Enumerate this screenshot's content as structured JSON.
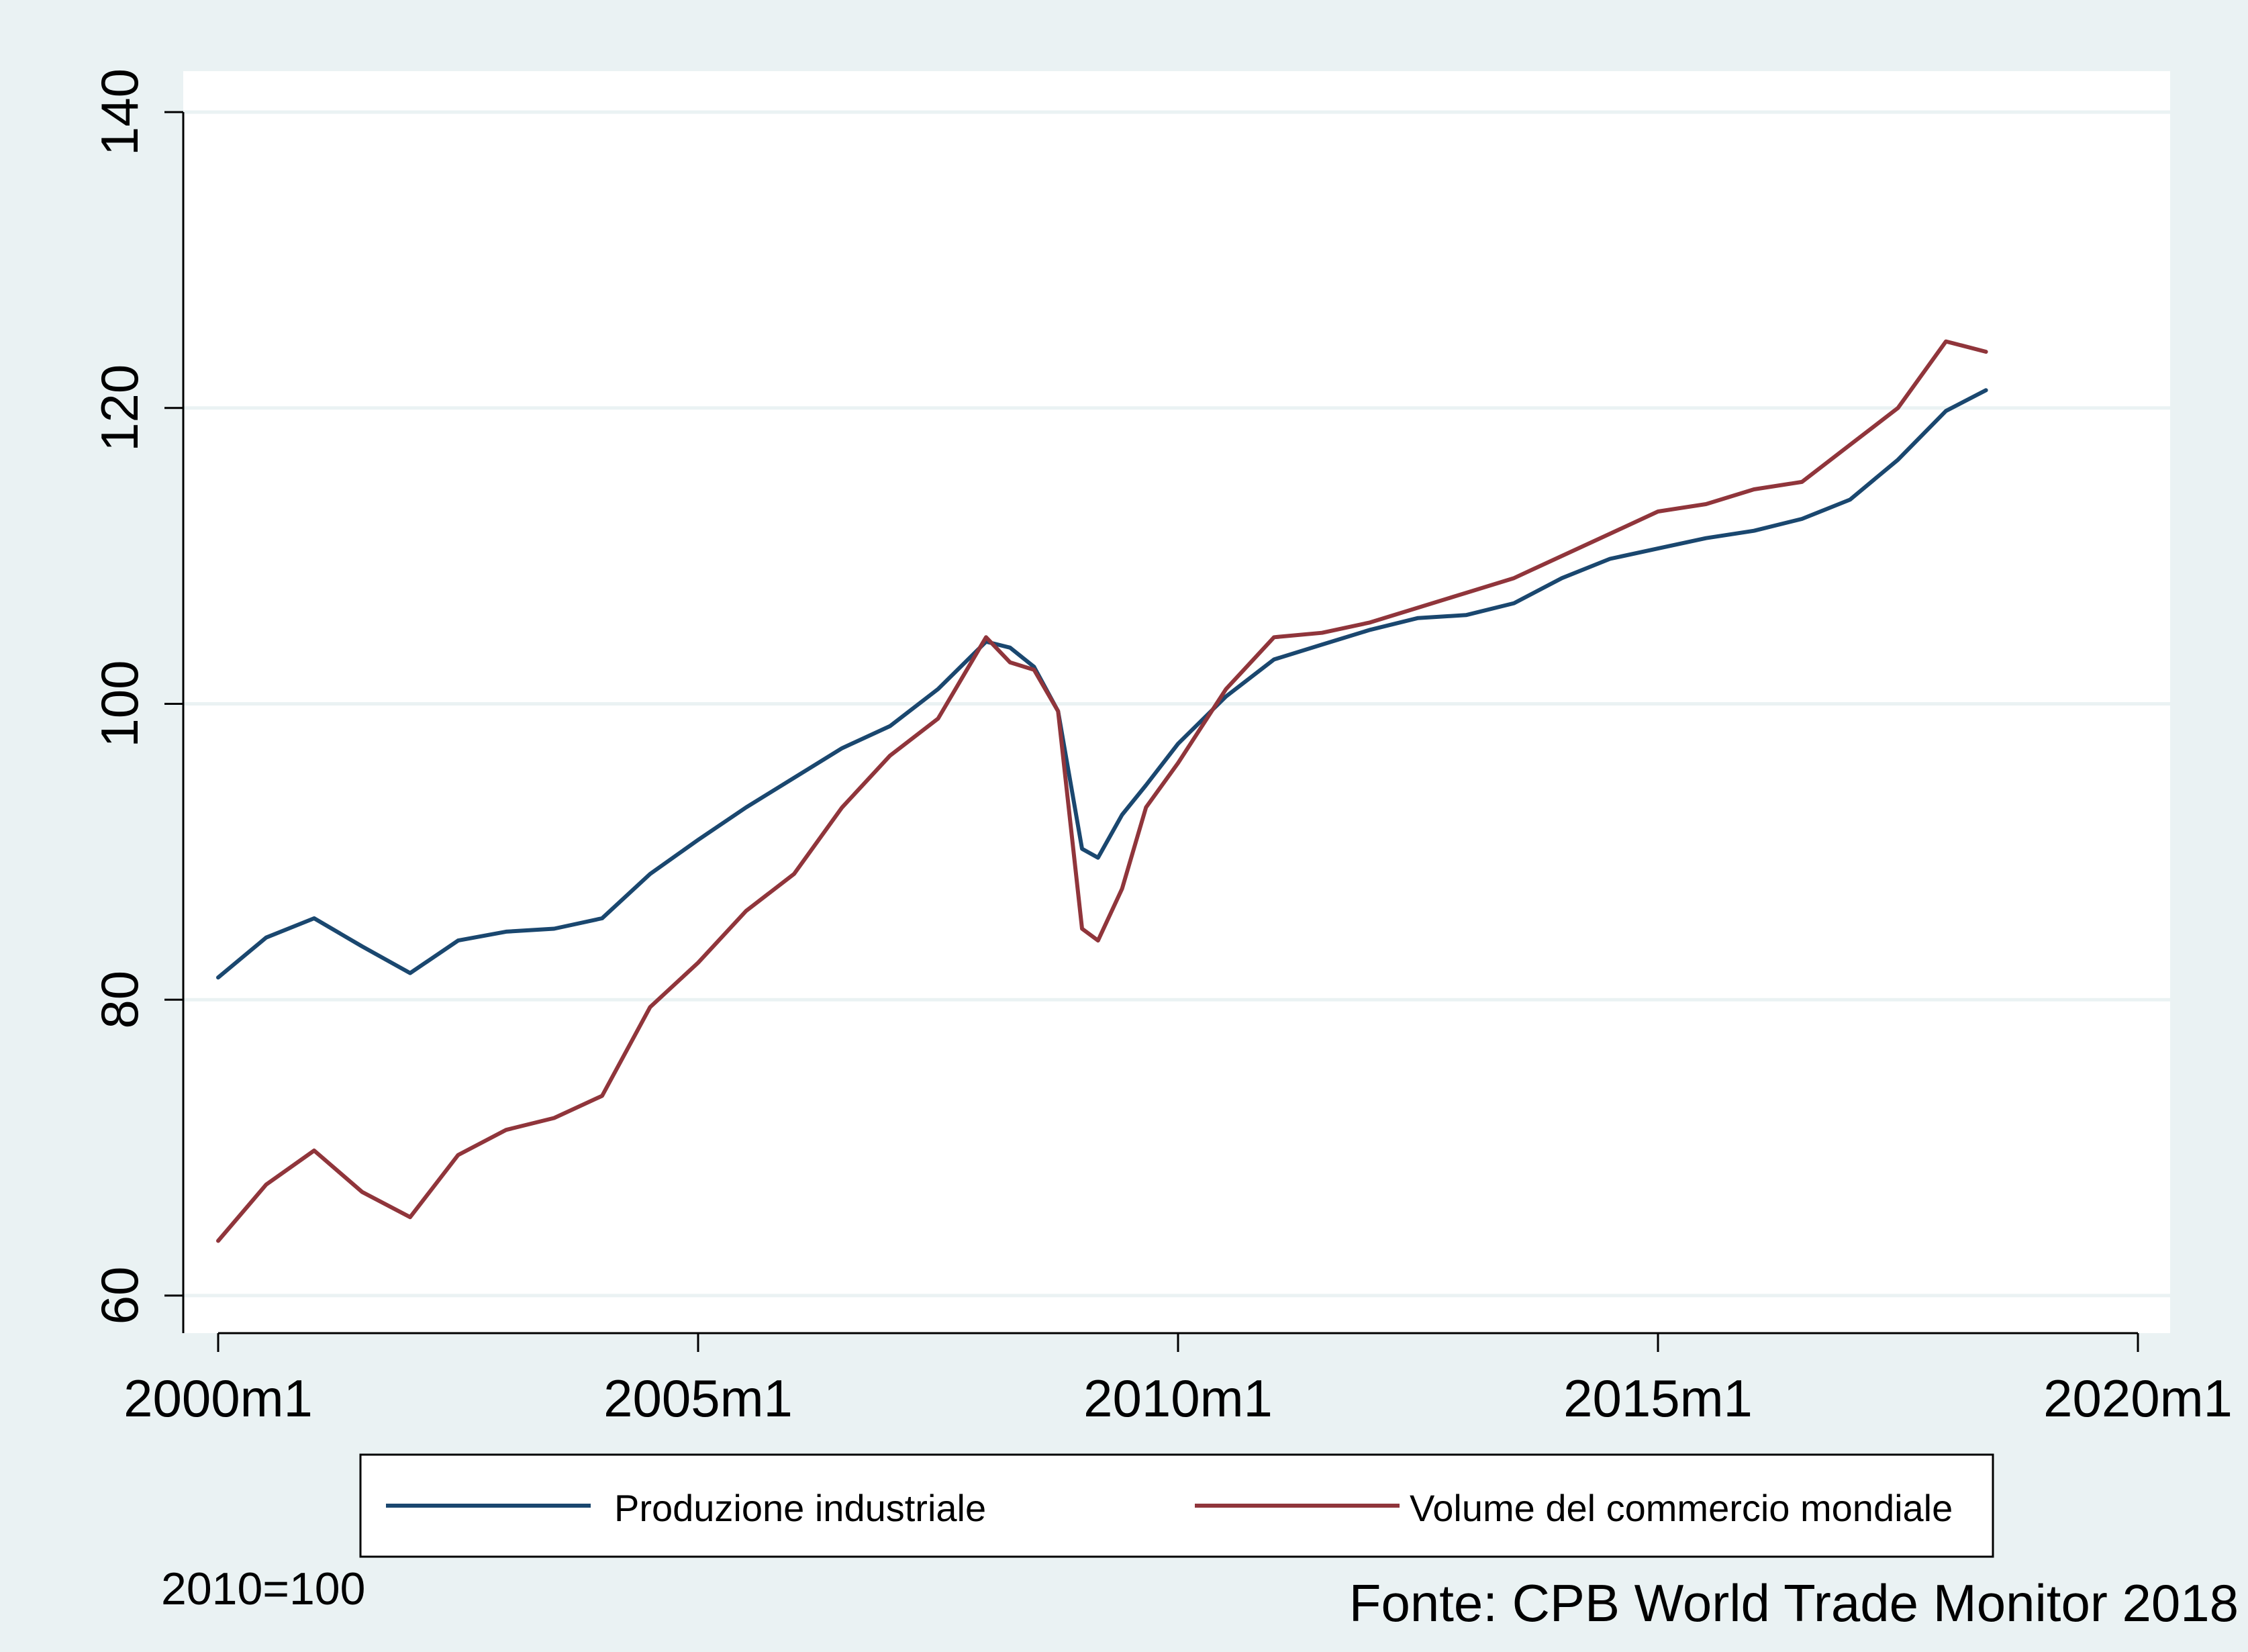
{
  "colors": {
    "outer_bg": "#eaf2f3",
    "plot_bg": "#ffffff",
    "grid": "#eaf2f3",
    "axis": "#000000",
    "series_1": "#1a476f",
    "series_2": "#90353b"
  },
  "footnotes": {
    "base_note": "2010=100",
    "source": "Fonte: CPB World Trade Monitor 2018"
  },
  "chart_data": {
    "type": "line",
    "title": "",
    "xlabel": "",
    "ylabel": "",
    "xlim": [
      "2000m1",
      "2020m1"
    ],
    "ylim": [
      60,
      140
    ],
    "x_ticks": [
      "2000m1",
      "2005m1",
      "2010m1",
      "2015m1",
      "2020m1"
    ],
    "y_ticks": [
      60,
      80,
      100,
      120,
      140
    ],
    "grid": true,
    "legend_position": "bottom",
    "x_anchor_months": [
      "2000m1",
      "2000m7",
      "2001m1",
      "2001m7",
      "2002m1",
      "2002m7",
      "2003m1",
      "2003m7",
      "2004m1",
      "2004m7",
      "2005m1",
      "2005m7",
      "2006m1",
      "2006m7",
      "2007m1",
      "2007m7",
      "2008m1",
      "2008m4",
      "2008m7",
      "2008m10",
      "2009m1",
      "2009m3",
      "2009m6",
      "2009m9",
      "2010m1",
      "2010m7",
      "2011m1",
      "2011m7",
      "2012m1",
      "2012m7",
      "2013m1",
      "2013m7",
      "2014m1",
      "2014m7",
      "2015m1",
      "2015m7",
      "2016m1",
      "2016m7",
      "2017m1",
      "2017m7",
      "2018m1",
      "2018m6"
    ],
    "series": [
      {
        "name": "Produzione industriale",
        "color": "#1a476f",
        "values": [
          81.5,
          84.2,
          85.5,
          83.6,
          81.8,
          84.0,
          84.6,
          84.8,
          85.5,
          88.5,
          90.8,
          93.0,
          95.0,
          97.0,
          98.5,
          101.0,
          104.2,
          103.8,
          102.5,
          99.5,
          90.2,
          89.6,
          92.5,
          94.5,
          97.3,
          100.5,
          103.0,
          104.0,
          105.0,
          105.8,
          106.0,
          106.8,
          108.5,
          109.8,
          110.5,
          111.2,
          111.7,
          112.5,
          113.8,
          116.5,
          119.8,
          121.2
        ]
      },
      {
        "name": "Volume del commercio mondiale",
        "color": "#90353b",
        "values": [
          63.7,
          67.5,
          69.8,
          67.0,
          65.3,
          69.5,
          71.2,
          72.0,
          73.5,
          79.5,
          82.5,
          86.0,
          88.5,
          93.0,
          96.5,
          99.0,
          104.5,
          102.8,
          102.3,
          99.5,
          84.8,
          84.0,
          87.5,
          93.0,
          96.0,
          101.0,
          104.5,
          104.8,
          105.5,
          106.5,
          107.5,
          108.5,
          110.0,
          111.5,
          113.0,
          113.5,
          114.5,
          115.0,
          117.5,
          120.0,
          124.5,
          123.8
        ]
      }
    ]
  }
}
